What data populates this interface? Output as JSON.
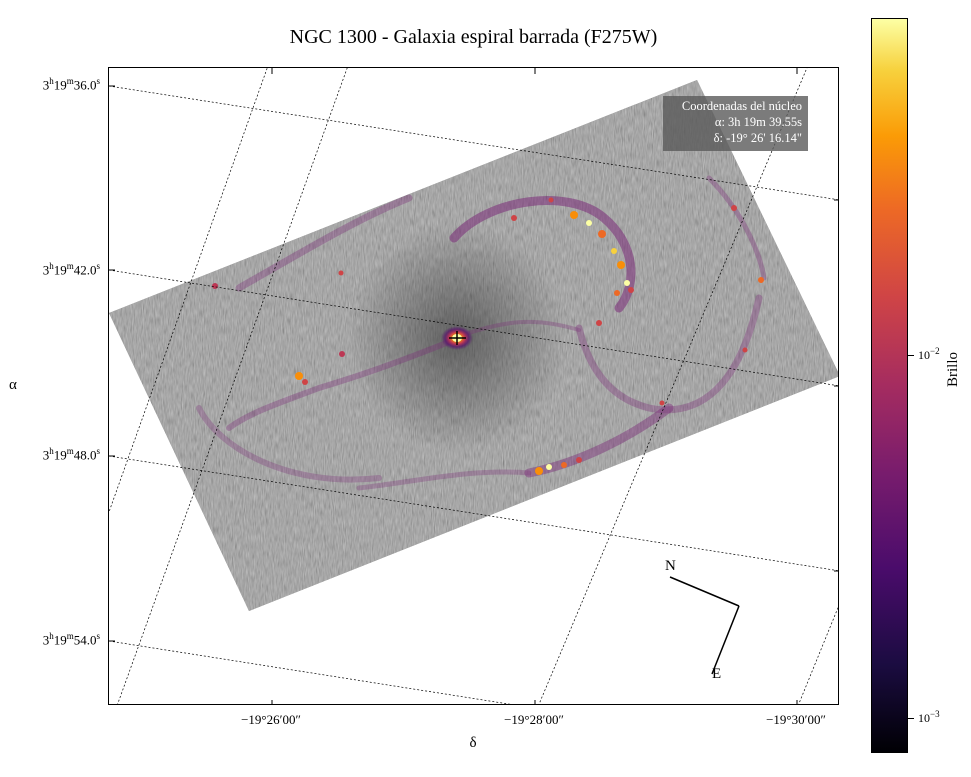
{
  "title": "NGC 1300 - Galaxia espiral barrada (F275W)",
  "axes": {
    "x_title": "δ",
    "y_title": "α",
    "y_ticks": [
      {
        "h": "3",
        "m": "19",
        "s": "36.0",
        "s_sup": "s"
      },
      {
        "h": "3",
        "m": "19",
        "s": "42.0",
        "s_sup": "s"
      },
      {
        "h": "3",
        "m": "19",
        "s": "48.0",
        "s_sup": "s"
      },
      {
        "h": "3",
        "m": "19",
        "s": "54.0",
        "s_sup": "s"
      }
    ],
    "x_ticks": [
      "−19°26′00″",
      "−19°28′00″",
      "−19°30′00″"
    ]
  },
  "info_box": {
    "line1": "Coordenadas del núcleo",
    "line2": "α: 3h 19m 39.55s",
    "line3": "δ: -19° 26' 16.14\""
  },
  "compass": {
    "north": "N",
    "east": "E"
  },
  "colorbar": {
    "title": "Brillo",
    "colormap": "inferno",
    "scale": "log",
    "ticks": [
      {
        "base": "10",
        "exp": "−2"
      },
      {
        "base": "10",
        "exp": "−3"
      }
    ]
  }
}
